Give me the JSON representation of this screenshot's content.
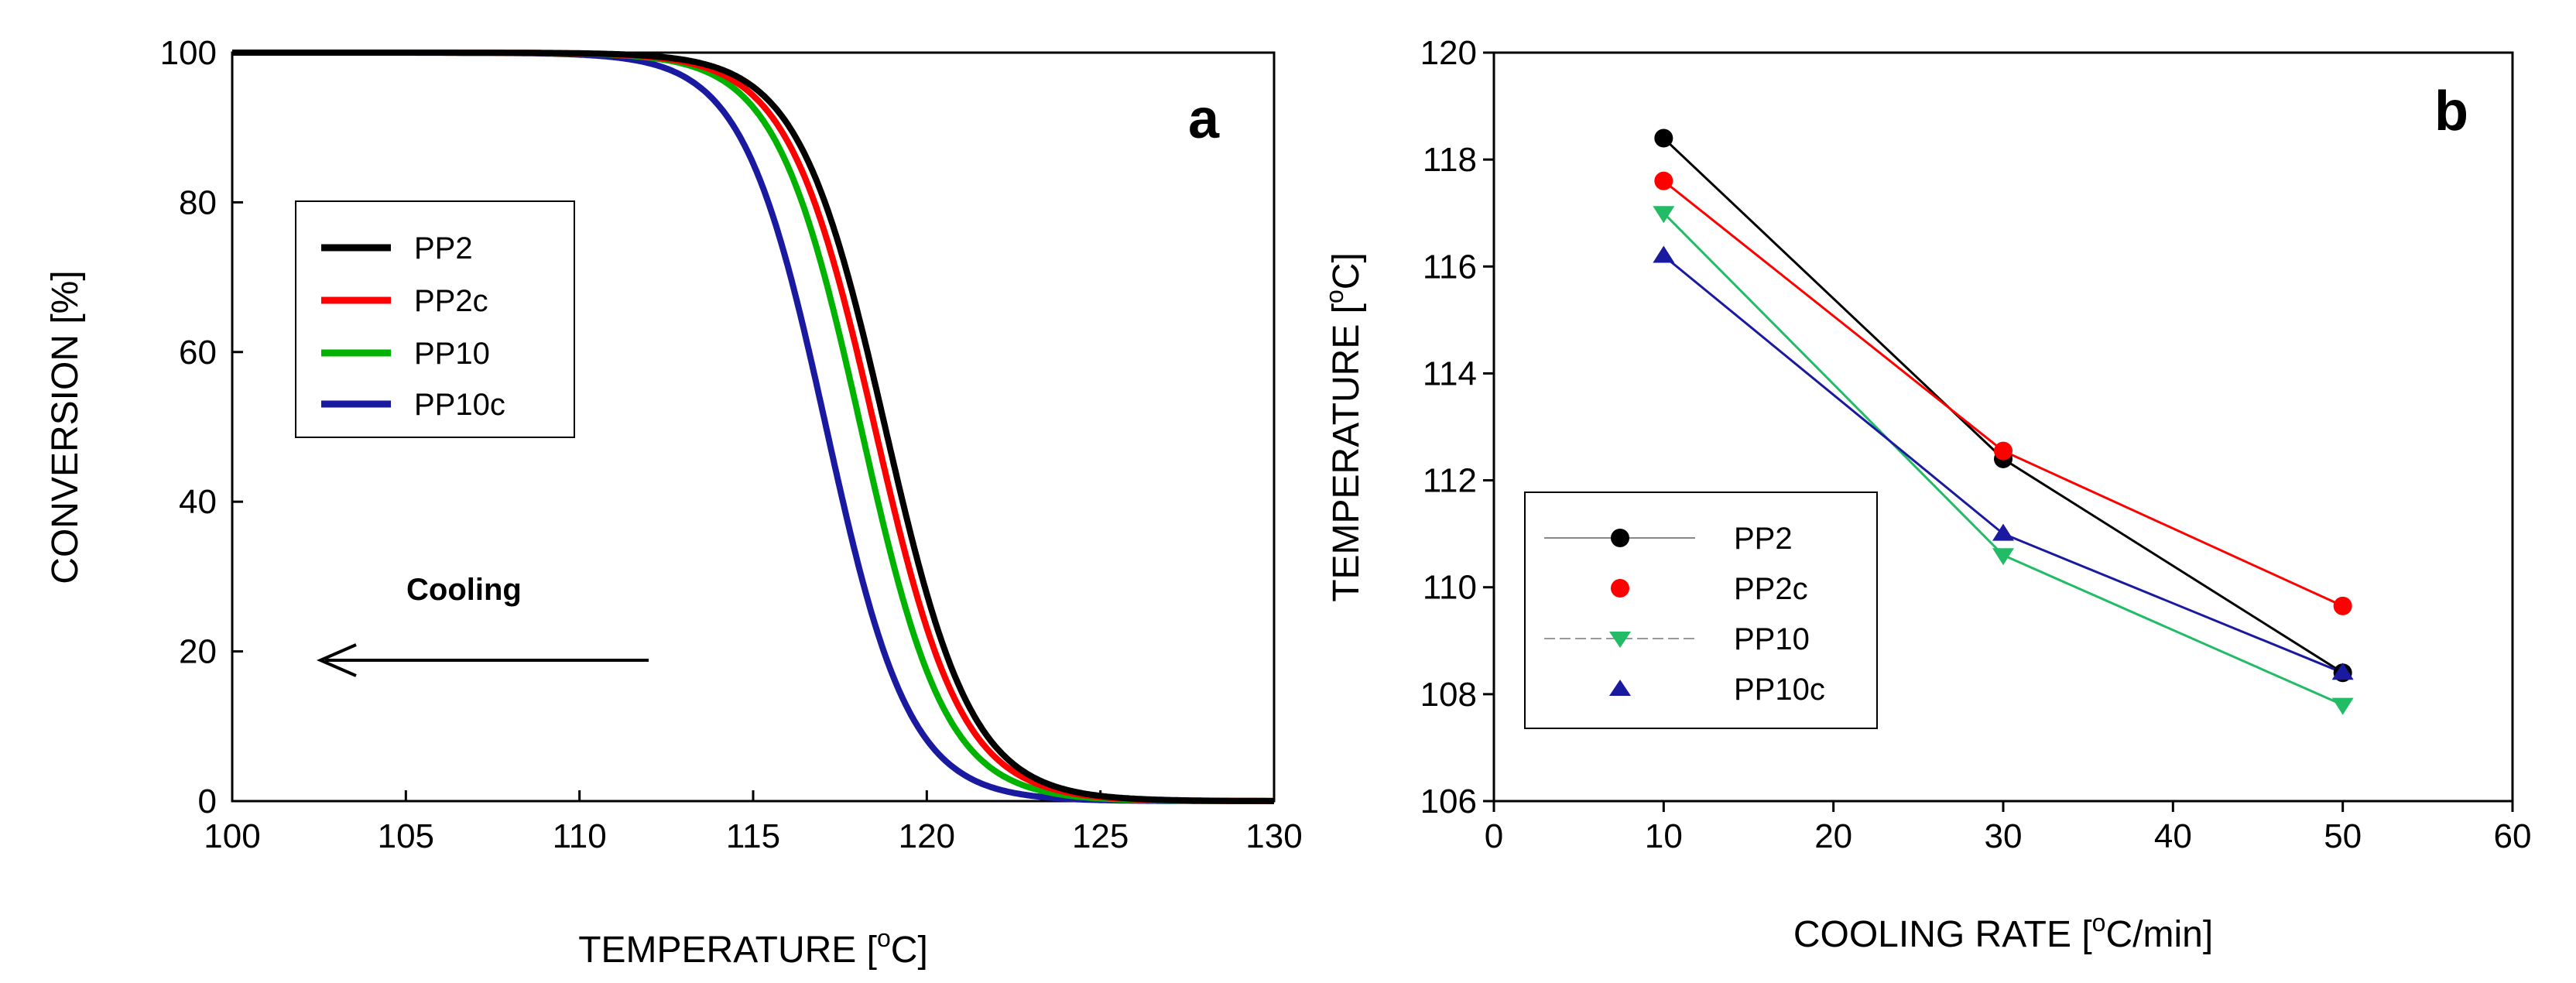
{
  "chart_data": [
    {
      "panel": "a",
      "type": "line",
      "title": "",
      "xlabel": "TEMPERATURE [",
      "xlabel_sup": "o",
      "xlabel_unit": "C]",
      "ylabel": "CONVERSION [%]",
      "xlim": [
        100,
        130
      ],
      "ylim": [
        0,
        100
      ],
      "xticks": [
        100,
        105,
        110,
        115,
        120,
        125,
        130
      ],
      "yticks": [
        0,
        20,
        40,
        60,
        80,
        100
      ],
      "xtick_labels": [
        "100",
        "105",
        "110",
        "115",
        "120",
        "125",
        "130"
      ],
      "ytick_labels": [
        "0",
        "20",
        "40",
        "60",
        "80",
        "100"
      ],
      "annotation": "Cooling",
      "legend_position": "upper-left",
      "series": [
        {
          "name": "PP2",
          "color": "#000000",
          "midpoint": 118.8,
          "width": 1.25
        },
        {
          "name": "PP2c",
          "color": "#ff0000",
          "midpoint": 118.5,
          "width": 1.25
        },
        {
          "name": "PP10",
          "color": "#00b300",
          "midpoint": 118.1,
          "width": 1.22
        },
        {
          "name": "PP10c",
          "color": "#1a1aa0",
          "midpoint": 117.1,
          "width": 1.2
        }
      ]
    },
    {
      "panel": "b",
      "type": "line",
      "title": "",
      "xlabel": "COOLING RATE [",
      "xlabel_sup": "o",
      "xlabel_unit": "C/min]",
      "ylabel": "TEMPERATURE [",
      "ylabel_sup": "o",
      "ylabel_unit": "C]",
      "xlim": [
        0,
        60
      ],
      "ylim": [
        106,
        120
      ],
      "xticks": [
        0,
        10,
        20,
        30,
        40,
        50,
        60
      ],
      "yticks": [
        106,
        108,
        110,
        112,
        114,
        116,
        118,
        120
      ],
      "xtick_labels": [
        "0",
        "10",
        "20",
        "30",
        "40",
        "50",
        "60"
      ],
      "ytick_labels": [
        "106",
        "108",
        "110",
        "112",
        "114",
        "116",
        "118",
        "120"
      ],
      "legend_position": "lower-left",
      "x": [
        10,
        30,
        50
      ],
      "series": [
        {
          "name": "PP2",
          "color": "#000000",
          "marker": "circle",
          "values": [
            118.4,
            112.4,
            108.4
          ]
        },
        {
          "name": "PP2c",
          "color": "#ff0000",
          "marker": "circle",
          "values": [
            117.6,
            112.55,
            109.65
          ]
        },
        {
          "name": "PP10",
          "color": "#22bb66",
          "marker": "triangle-down",
          "values": [
            117.0,
            110.6,
            107.8
          ]
        },
        {
          "name": "PP10c",
          "color": "#1a1aa0",
          "marker": "triangle-up",
          "values": [
            116.2,
            111.0,
            108.4
          ]
        }
      ]
    }
  ]
}
